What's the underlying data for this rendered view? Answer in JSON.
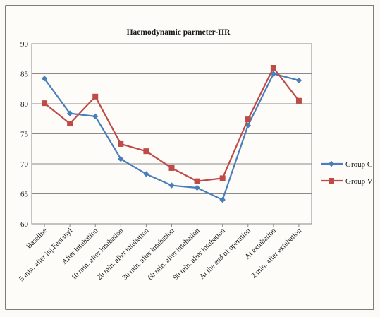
{
  "chart_data": {
    "type": "line",
    "title": "Haemodynamic parmeter-HR",
    "xlabel": "",
    "ylabel": "",
    "ylim": [
      60,
      90
    ],
    "yticks": [
      60,
      65,
      70,
      75,
      80,
      85,
      90
    ],
    "grid": true,
    "legend_position": "right",
    "categories": [
      "Baseline",
      "5 min. after inj.Fentanyl",
      "After intubation",
      "10 min. after intubation",
      "20 min. after intubation",
      "30 min. after intubation",
      "60 min. after intubation",
      "90 min. after intubation",
      "At the end of operation",
      "At extubation",
      "2 min. after extubation"
    ],
    "series": [
      {
        "name": "Group C",
        "color": "#4a7ebb",
        "marker": "diamond",
        "values": [
          84.2,
          78.4,
          77.9,
          70.8,
          68.3,
          66.4,
          66.0,
          64.0,
          76.4,
          85.0,
          83.9
        ]
      },
      {
        "name": "Group V",
        "color": "#be4b48",
        "marker": "square",
        "values": [
          80.1,
          76.7,
          81.2,
          73.3,
          72.1,
          69.3,
          67.1,
          67.6,
          77.4,
          86.0,
          80.5
        ]
      }
    ]
  }
}
